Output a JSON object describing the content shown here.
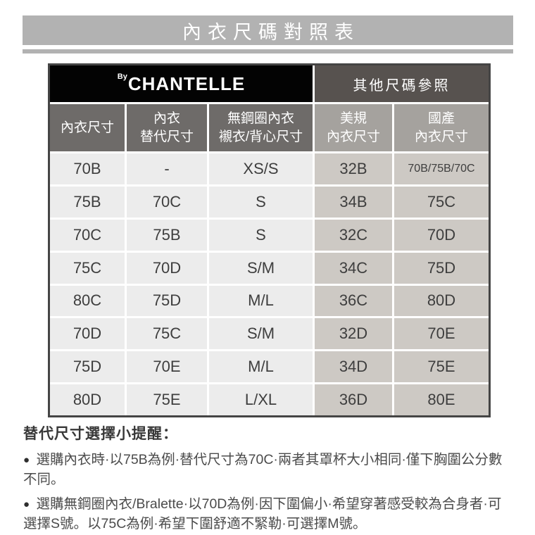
{
  "page": {
    "title": "內衣尺碼對照表"
  },
  "table": {
    "brand_by": "By",
    "brand_name": "CHANTELLE",
    "other_ref_header": "其他尺碼參照",
    "columns": [
      {
        "line1": "內衣尺寸",
        "line2": ""
      },
      {
        "line1": "內衣",
        "line2": "替代尺寸"
      },
      {
        "line1": "無鋼圈內衣",
        "line2": "襯衣/背心尺寸"
      },
      {
        "line1": "美規",
        "line2": "內衣尺寸"
      },
      {
        "line1": "國產",
        "line2": "內衣尺寸"
      }
    ],
    "rows": [
      [
        "70B",
        "-",
        "XS/S",
        "32B",
        "70B/75B/70C"
      ],
      [
        "75B",
        "70C",
        "S",
        "34B",
        "75C"
      ],
      [
        "70C",
        "75B",
        "S",
        "32C",
        "70D"
      ],
      [
        "75C",
        "70D",
        "S/M",
        "34C",
        "75D"
      ],
      [
        "80C",
        "75D",
        "M/L",
        "36C",
        "80D"
      ],
      [
        "70D",
        "75C",
        "S/M",
        "32D",
        "70E"
      ],
      [
        "75D",
        "70E",
        "M/L",
        "34D",
        "75E"
      ],
      [
        "80D",
        "75E",
        "L/XL",
        "36D",
        "80E"
      ]
    ]
  },
  "notes": {
    "heading": "替代尺寸選擇小提醒：",
    "bullet": "●",
    "items": [
      "選購內衣時·以75B為例·替代尺寸為70C·兩者其罩杯大小相同·僅下胸圍公分數不同。",
      "選購無鋼圈內衣/Bralette·以70D為例·因下圍偏小·希望穿著感受較為合身者·可選擇S號。以75C為例·希望下圍舒適不緊勒·可選擇M號。"
    ]
  },
  "colors": {
    "title_bar_bg": "#b2b2b2",
    "brand_cell_bg": "#030303",
    "other_ref_cell_bg": "#57524f",
    "header_left_bg": "#6e6b69",
    "header_right_bg": "#a5a29e",
    "body_left_bg": "#ececec",
    "body_right_bg": "#cdc9c4",
    "table_border": "#454545",
    "body_text": "#3e3e3e",
    "note_text": "#4b4b4b"
  }
}
